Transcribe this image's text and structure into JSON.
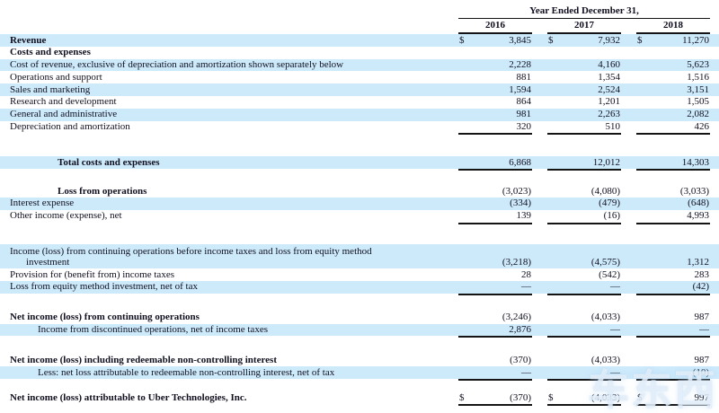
{
  "table": {
    "header": {
      "title": "Year Ended December 31,",
      "years": [
        "2016",
        "2017",
        "2018"
      ]
    },
    "rows": [
      {
        "label": "Revenue",
        "bold": true,
        "bg": "blue",
        "currency": "$",
        "values": [
          "3,845",
          "7,932",
          "11,270"
        ]
      },
      {
        "label": "Costs and expenses",
        "bold": true,
        "bg": "white"
      },
      {
        "label": "Cost of revenue, exclusive of depreciation and amortization shown separately below",
        "bg": "blue",
        "values": [
          "2,228",
          "4,160",
          "5,623"
        ]
      },
      {
        "label": "Operations and support",
        "bg": "white",
        "values": [
          "881",
          "1,354",
          "1,516"
        ]
      },
      {
        "label": "Sales and marketing",
        "bg": "blue",
        "values": [
          "1,594",
          "2,524",
          "3,151"
        ]
      },
      {
        "label": "Research and development",
        "bg": "white",
        "values": [
          "864",
          "1,201",
          "1,505"
        ]
      },
      {
        "label": "General and administrative",
        "bg": "blue",
        "values": [
          "981",
          "2,263",
          "2,082"
        ]
      },
      {
        "label": "Depreciation and amortization",
        "bg": "white",
        "values": [
          "320",
          "510",
          "426"
        ],
        "underline": true,
        "gap_after": 26
      },
      {
        "label": "Total costs and expenses",
        "bold": true,
        "indent": 2,
        "bg": "blue",
        "values": [
          "6,868",
          "12,012",
          "14,303"
        ],
        "underline": true,
        "gap_after": 18
      },
      {
        "label": "Loss from operations",
        "bold": true,
        "indent": 2,
        "bg": "white",
        "values": [
          "(3,023)",
          "(4,080)",
          "(3,033)"
        ]
      },
      {
        "label": "Interest expense",
        "bg": "blue",
        "values": [
          "(334)",
          "(479)",
          "(648)"
        ]
      },
      {
        "label": "Other income (expense), net",
        "bg": "white",
        "values": [
          "139",
          "(16)",
          "4,993"
        ],
        "underline": true,
        "gap_after": 24
      },
      {
        "label": "Income (loss) from continuing operations before income taxes and loss from equity method",
        "label2": "investment",
        "bg": "blue",
        "values": [
          "(3,218)",
          "(4,575)",
          "1,312"
        ]
      },
      {
        "label": "Provision for (benefit from) income taxes",
        "bg": "white",
        "values": [
          "28",
          "(542)",
          "283"
        ]
      },
      {
        "label": "Loss from equity method investment, net of tax",
        "bg": "blue",
        "values": [
          "—",
          "—",
          "(42)"
        ],
        "underline": true,
        "gap_after": 20
      },
      {
        "label": "Net income (loss) from continuing operations",
        "bold": true,
        "bg": "white",
        "values": [
          "(3,246)",
          "(4,033)",
          "987"
        ]
      },
      {
        "label": "Income from discontinued operations, net of income taxes",
        "indent": 1,
        "bg": "blue",
        "values": [
          "2,876",
          "—",
          "—"
        ],
        "underline": true,
        "gap_after": 20
      },
      {
        "label": "Net income (loss) including redeemable non-controlling interest",
        "bold": true,
        "bg": "white",
        "values": [
          "(370)",
          "(4,033)",
          "987"
        ]
      },
      {
        "label": "Less: net loss attributable to redeemable non-controlling interest, net of tax",
        "indent": 1,
        "bg": "blue",
        "values": [
          "—",
          "—",
          "(10)"
        ],
        "underline": true,
        "gap_after": 13
      },
      {
        "label": "Net income (loss) attributable to Uber Technologies, Inc.",
        "bold": true,
        "bg": "white",
        "currency": "$",
        "values": [
          "(370)",
          "(4,033)",
          "997"
        ],
        "underline": true,
        "last": true
      }
    ]
  },
  "colors": {
    "row_highlight": "#cdeafb",
    "text": "#101020",
    "rule": "#141414"
  },
  "watermark": {
    "text": "车东西"
  }
}
